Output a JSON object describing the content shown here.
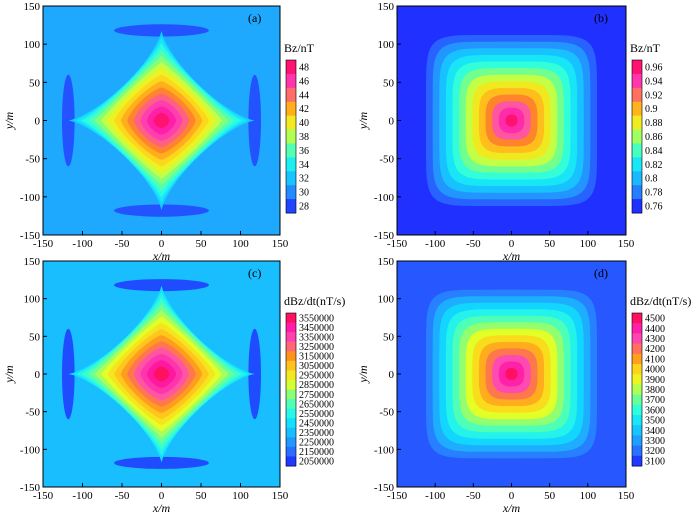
{
  "chart_data": [
    {
      "type": "heatmap",
      "panel_label": "(a)",
      "colorbar_title": "Bz/nT",
      "colorbar_ticks": [
        "48",
        "46",
        "44",
        "42",
        "40",
        "38",
        "36",
        "34",
        "32",
        "30",
        "28"
      ],
      "colorbar_range": [
        27,
        49
      ],
      "xlabel": "x/m",
      "ylabel": "y/m",
      "xlim": [
        -150,
        150
      ],
      "ylim": [
        -150,
        150
      ],
      "x_ticks": [
        "-150",
        "-100",
        "-50",
        "0",
        "50",
        "100",
        "150"
      ],
      "y_ticks": [
        "150",
        "100",
        "50",
        "0",
        "-50",
        "-100",
        "-150"
      ],
      "pattern": "star",
      "center_value": 48,
      "edge_value": 31,
      "min_value": 28
    },
    {
      "type": "heatmap",
      "panel_label": "(b)",
      "colorbar_title": "Bz/nT",
      "colorbar_ticks": [
        "0.96",
        "0.94",
        "0.92",
        "0.9",
        "0.88",
        "0.86",
        "0.84",
        "0.82",
        "0.8",
        "0.78",
        "0.76"
      ],
      "colorbar_range": [
        0.755,
        0.97
      ],
      "xlabel": "x/m",
      "ylabel": "y/m",
      "xlim": [
        -150,
        150
      ],
      "ylim": [
        -150,
        150
      ],
      "x_ticks": [
        "-150",
        "-100",
        "-50",
        "0",
        "50",
        "100",
        "150"
      ],
      "y_ticks": [
        "150",
        "100",
        "50",
        "0",
        "-50",
        "-100",
        "-150"
      ],
      "pattern": "square",
      "center_value": 0.96,
      "edge_value": 0.76,
      "min_value": 0.76
    },
    {
      "type": "heatmap",
      "panel_label": "(c)",
      "colorbar_title": "dBz/dt(nT/s)",
      "colorbar_ticks": [
        "3550000",
        "3450000",
        "3350000",
        "3250000",
        "3150000",
        "3050000",
        "2950000",
        "2850000",
        "2750000",
        "2650000",
        "2550000",
        "2450000",
        "2350000",
        "2250000",
        "2150000",
        "2050000"
      ],
      "colorbar_range": [
        2000000,
        3600000
      ],
      "xlabel": "x/m",
      "ylabel": "y/m",
      "xlim": [
        -150,
        150
      ],
      "ylim": [
        -150,
        150
      ],
      "x_ticks": [
        "-150",
        "-100",
        "-50",
        "0",
        "50",
        "100",
        "150"
      ],
      "y_ticks": [
        "150",
        "100",
        "50",
        "0",
        "-50",
        "-100",
        "-150"
      ],
      "pattern": "star",
      "center_value": 3550000,
      "edge_value": 2350000,
      "min_value": 2050000
    },
    {
      "type": "heatmap",
      "panel_label": "(d)",
      "colorbar_title": "dBz/dt(nT/s)",
      "colorbar_ticks": [
        "4500",
        "4400",
        "4300",
        "4200",
        "4100",
        "4000",
        "3900",
        "3800",
        "3700",
        "3600",
        "3500",
        "3400",
        "3300",
        "3200",
        "3100"
      ],
      "colorbar_range": [
        3050,
        4550
      ],
      "xlabel": "x/m",
      "ylabel": "y/m",
      "xlim": [
        -150,
        150
      ],
      "ylim": [
        -150,
        150
      ],
      "x_ticks": [
        "-150",
        "-100",
        "-50",
        "0",
        "50",
        "100",
        "150"
      ],
      "y_ticks": [
        "150",
        "100",
        "50",
        "0",
        "-50",
        "-100",
        "-150"
      ],
      "pattern": "square",
      "center_value": 4500,
      "edge_value": 3150,
      "min_value": 3100
    }
  ],
  "colors": {
    "colormap": [
      "#1c1cff",
      "#2a6cff",
      "#1ea9ff",
      "#11dcff",
      "#2cffe0",
      "#7bff82",
      "#e5ff26",
      "#ffd21a",
      "#ff8a1f",
      "#ff4fb2",
      "#ff1aa8",
      "#ff0a3a"
    ]
  }
}
